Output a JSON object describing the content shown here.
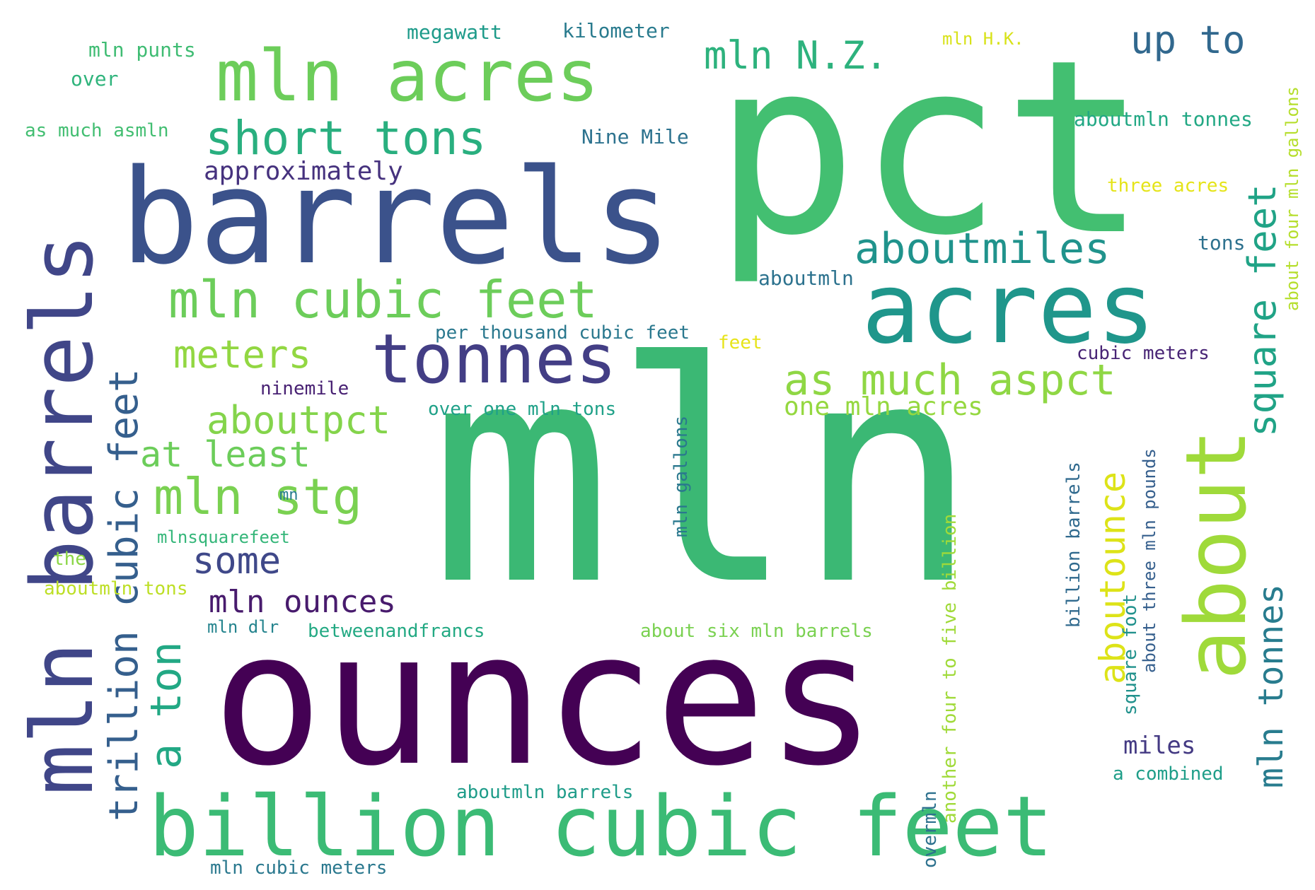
{
  "words": [
    {
      "text": "mln",
      "color": "#3bb874"
    },
    {
      "text": "ounces",
      "color": "#440154"
    },
    {
      "text": "pct",
      "color": "#43bf71"
    },
    {
      "text": "barrels",
      "color": "#3b528b"
    },
    {
      "text": "billion cubic feet",
      "color": "#3bbb75"
    },
    {
      "text": "mln barrels",
      "color": "#404688"
    },
    {
      "text": "acres",
      "color": "#1f968b"
    },
    {
      "text": "mln acres",
      "color": "#6ccd5a"
    },
    {
      "text": "tonnes",
      "color": "#433e85"
    },
    {
      "text": "mln cubic feet",
      "color": "#6ccd5a"
    },
    {
      "text": "about",
      "color": "#9fda3a"
    },
    {
      "text": "short tons",
      "color": "#29af7f"
    },
    {
      "text": "trillion cubic feet",
      "color": "#355f8d"
    },
    {
      "text": "mln stg",
      "color": "#7ad151"
    },
    {
      "text": "a ton",
      "color": "#22a884"
    },
    {
      "text": "mln tonnes",
      "color": "#287c8e"
    },
    {
      "text": "square feet",
      "color": "#20a386"
    },
    {
      "text": "aboutmiles",
      "color": "#20938c"
    },
    {
      "text": "as much aspct",
      "color": "#8fd744"
    },
    {
      "text": "aboutpct",
      "color": "#84d44b"
    },
    {
      "text": "meters",
      "color": "#92d742"
    },
    {
      "text": "aboutounce",
      "color": "#dde318"
    },
    {
      "text": "up to",
      "color": "#31688e"
    },
    {
      "text": "mln N.Z.",
      "color": "#2db27d"
    },
    {
      "text": "some",
      "color": "#3f4889"
    },
    {
      "text": "at least",
      "color": "#6ccd5a"
    },
    {
      "text": "mln ounces",
      "color": "#481b6d"
    },
    {
      "text": "approximately",
      "color": "#46327e"
    },
    {
      "text": "one mln acres",
      "color": "#95d840"
    },
    {
      "text": "miles",
      "color": "#443a83"
    },
    {
      "text": "over one mln tons",
      "color": "#1fa188"
    },
    {
      "text": "per thousand cubic feet",
      "color": "#2a788e"
    },
    {
      "text": "mln gallons",
      "color": "#2a788e"
    },
    {
      "text": "another four to five billion",
      "color": "#a0da39"
    },
    {
      "text": "billion barrels",
      "color": "#306a8e"
    },
    {
      "text": "about four mln gallons",
      "color": "#b5de2b"
    },
    {
      "text": "about three mln pounds",
      "color": "#355f8d"
    },
    {
      "text": "square foot",
      "color": "#21918c"
    },
    {
      "text": "overmln",
      "color": "#2d718e"
    },
    {
      "text": "aboutmln tonnes",
      "color": "#22a884"
    },
    {
      "text": "Nine Mile",
      "color": "#2c728e"
    },
    {
      "text": "aboutmln",
      "color": "#2c728e"
    },
    {
      "text": "betweenandfrancs",
      "color": "#23a983"
    },
    {
      "text": "about six mln barrels",
      "color": "#7ad151"
    },
    {
      "text": "aboutmln barrels",
      "color": "#1e9c89"
    },
    {
      "text": "mln cubic meters",
      "color": "#2a788e"
    },
    {
      "text": "megawatt",
      "color": "#1e9b8a"
    },
    {
      "text": "kilometer",
      "color": "#297b8e"
    },
    {
      "text": "mln punts",
      "color": "#3fbc73"
    },
    {
      "text": "over",
      "color": "#2fb47c"
    },
    {
      "text": "as much asmln",
      "color": "#42be71"
    },
    {
      "text": "mln H.K.",
      "color": "#d8e219"
    },
    {
      "text": "three acres",
      "color": "#e5e419"
    },
    {
      "text": "tons",
      "color": "#2d718e"
    },
    {
      "text": "cubic meters",
      "color": "#482475"
    },
    {
      "text": "feet",
      "color": "#e7e419"
    },
    {
      "text": "ninemile",
      "color": "#482173"
    },
    {
      "text": "mn",
      "color": "#287d8e"
    },
    {
      "text": "mlnsquarefeet",
      "color": "#34b679"
    },
    {
      "text": "the",
      "color": "#8bd646"
    },
    {
      "text": "aboutmln tons",
      "color": "#bddf26"
    },
    {
      "text": "mln dlr",
      "color": "#25848e"
    },
    {
      "text": "a combined",
      "color": "#1f9e89"
    }
  ]
}
